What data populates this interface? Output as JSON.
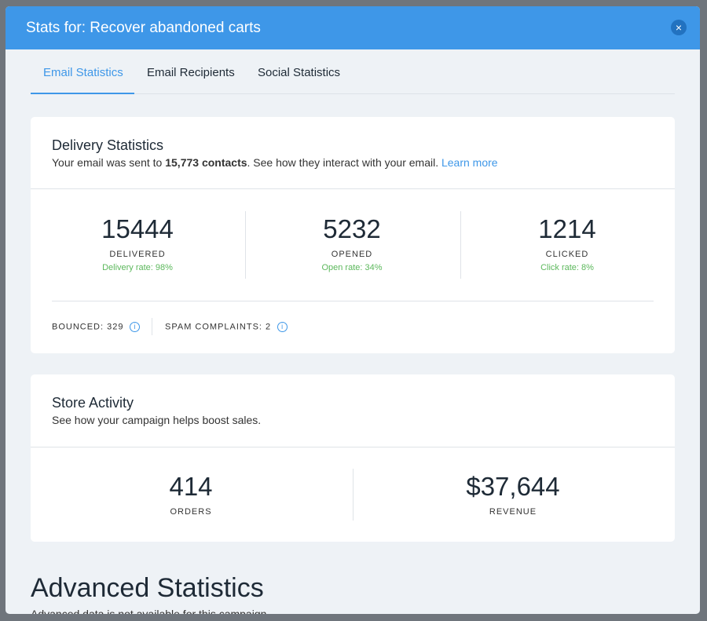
{
  "header": {
    "title": "Stats for: Recover abandoned carts",
    "close": "×"
  },
  "tabs": [
    "Email Statistics",
    "Email Recipients",
    "Social Statistics"
  ],
  "delivery": {
    "title": "Delivery Statistics",
    "description": {
      "before": "Your email was sent to ",
      "contacts": "15,773 contacts",
      "after": ". See how they interact with your email. ",
      "link": "Learn more"
    },
    "stats": [
      {
        "value": 15444,
        "label": "DELIVERED",
        "rate": "Delivery rate: 98%"
      },
      {
        "value": 5232,
        "label": "OPENED",
        "rate": "Open rate: 34%"
      },
      {
        "value": 1214,
        "label": "CLICKED",
        "rate": "Click rate: 8%"
      }
    ],
    "footer": [
      "BOUNCED: 329",
      "SPAM COMPLAINTS: 2"
    ]
  },
  "store": {
    "title": "Store Activity",
    "description": "See how your campaign helps boost sales.",
    "stats": [
      {
        "value": "414",
        "label": "ORDERS"
      },
      {
        "value": "$37,644",
        "label": "REVENUE"
      }
    ]
  },
  "advanced": {
    "title": "Advanced Statistics",
    "description": "Advanced data is not available for this campaign."
  }
}
